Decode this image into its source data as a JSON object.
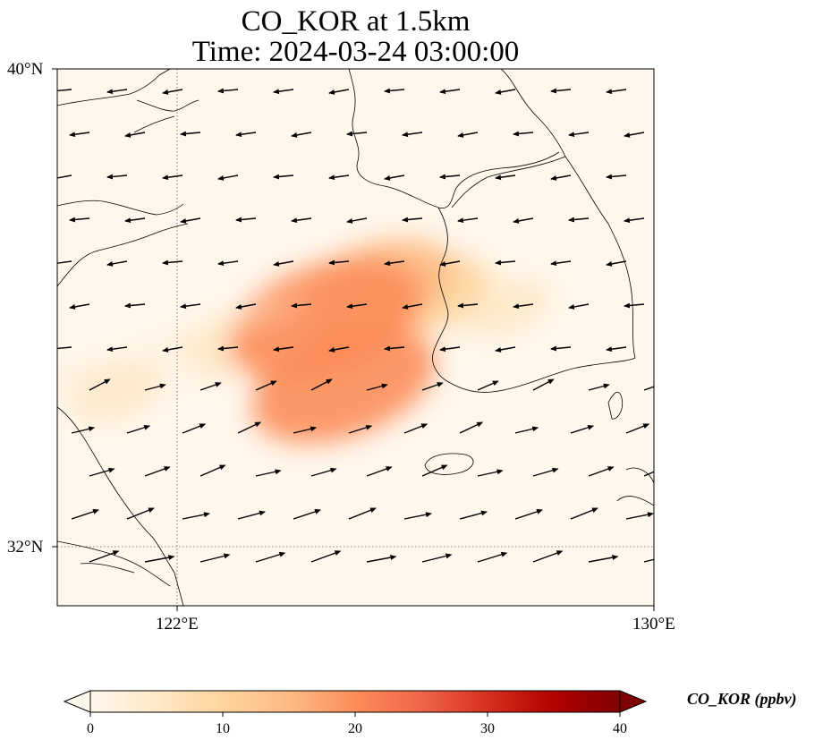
{
  "title": {
    "line1": "CO_KOR at 1.5km",
    "line2": "Time: 2024-03-24 03:00:00"
  },
  "axes": {
    "lat_labels": [
      "40°N",
      "32°N"
    ],
    "lon_labels": [
      "122°E",
      "130°E"
    ],
    "extent": {
      "lon": [
        120,
        130
      ],
      "lat": [
        31,
        40
      ]
    },
    "gridlines": {
      "lon": [
        122
      ],
      "lat": [
        32
      ],
      "style": "dotted"
    }
  },
  "colorbar": {
    "label": "CO_KOR (ppbv)",
    "ticks": [
      "0",
      "10",
      "20",
      "30",
      "40"
    ],
    "range": [
      0,
      40
    ],
    "extend": "both",
    "colormap": "OrRd",
    "colors": [
      "#fff7ec",
      "#fee8c8",
      "#fdd49e",
      "#fdbb84",
      "#fc8d59",
      "#ef6548",
      "#d7301f",
      "#b30000",
      "#7f0000"
    ]
  },
  "colors": {
    "land_ocean_background": "#fff7ec",
    "coastline": "#000000",
    "wind_arrow": "#000000"
  },
  "chart_data": {
    "type": "heatmap",
    "variable": "CO_KOR",
    "units": "ppbv",
    "level": "1.5km",
    "time": "2024-03-24 03:00:00",
    "plumes": [
      {
        "lon": 124.5,
        "lat": 35.8,
        "value": 22
      },
      {
        "lon": 124.8,
        "lat": 34.7,
        "value": 20
      },
      {
        "lon": 125.3,
        "lat": 36.3,
        "value": 16
      },
      {
        "lon": 126.2,
        "lat": 36.2,
        "value": 10
      },
      {
        "lon": 123.0,
        "lat": 35.4,
        "value": 7
      },
      {
        "lon": 121.0,
        "lat": 34.6,
        "value": 5
      },
      {
        "lon": 127.5,
        "lat": 36.0,
        "value": 4
      }
    ],
    "wind_vectors": "westward in north, eastward/north-eastward in south"
  }
}
